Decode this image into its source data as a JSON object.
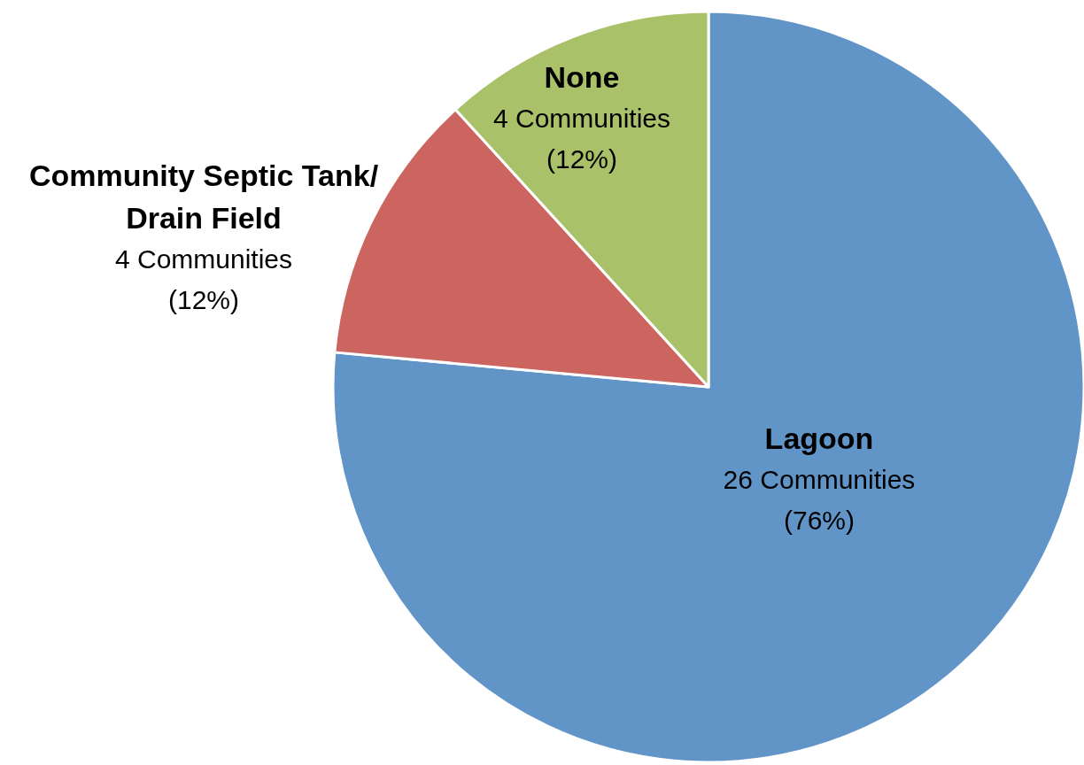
{
  "chart_data": {
    "type": "pie",
    "categories": [
      "Lagoon",
      "Community Septic Tank/\nDrain Field",
      "None"
    ],
    "values": [
      26,
      4,
      4
    ],
    "colors": [
      "#6195c8",
      "#cc6560",
      "#a9c26a"
    ],
    "value_labels": [
      "26 Communities\n(76%)",
      "4 Communities\n(12%)",
      "4 Communities\n(12%)"
    ],
    "legend": false
  }
}
